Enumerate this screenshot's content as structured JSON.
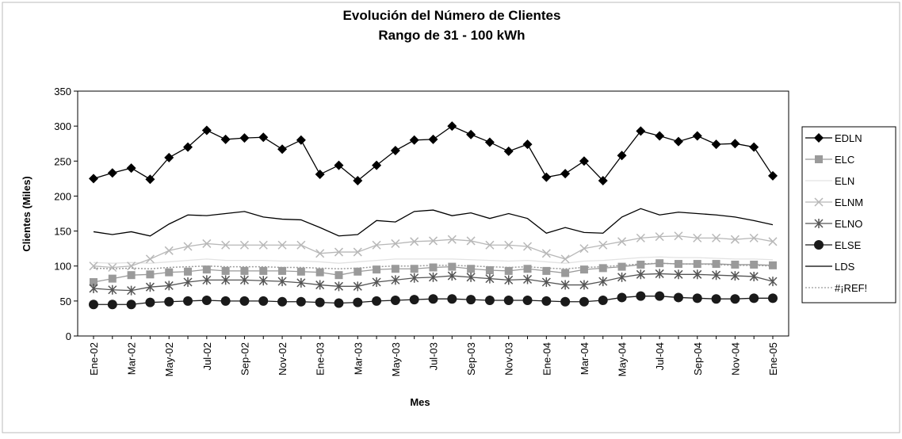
{
  "chart_data": {
    "type": "line",
    "title": "Evolución del Número de Clientes",
    "subtitle": "Rango de 31 - 100 kWh",
    "x_label": "Mes",
    "y_label": "Clientes (Miles)",
    "categories": [
      "Ene-02",
      null,
      "Mar-02",
      null,
      "May-02",
      null,
      "Jul-02",
      null,
      "Sep-02",
      null,
      "Nov-02",
      null,
      "Ene-03",
      null,
      "Mar-03",
      null,
      "May-03",
      null,
      "Jul-03",
      null,
      "Sep-03",
      null,
      "Nov-03",
      null,
      "Ene-04",
      null,
      "Mar-04",
      null,
      "May-04",
      null,
      "Jul-04",
      null,
      "Sep-04",
      null,
      "Nov-04",
      null,
      "Ene-05"
    ],
    "ylim": [
      0,
      350
    ],
    "yticks": [
      0,
      50,
      100,
      150,
      200,
      250,
      300,
      350
    ],
    "legend": "right",
    "series": [
      {
        "name": "EDLN",
        "color": "#000000",
        "marker": "diamond",
        "values": [
          225,
          233,
          240,
          224,
          255,
          270,
          294,
          281,
          283,
          284,
          267,
          280,
          231,
          244,
          222,
          244,
          265,
          280,
          281,
          300,
          288,
          277,
          264,
          274,
          227,
          232,
          250,
          222,
          258,
          293,
          286,
          278,
          286,
          274,
          275,
          270,
          229
        ]
      },
      {
        "name": "ELC",
        "color": "#9a9a9a",
        "marker": "square",
        "values": [
          77,
          82,
          87,
          88,
          91,
          92,
          95,
          93,
          93,
          93,
          93,
          92,
          91,
          87,
          92,
          95,
          96,
          96,
          98,
          99,
          96,
          94,
          93,
          96,
          93,
          90,
          95,
          97,
          99,
          102,
          104,
          103,
          103,
          103,
          102,
          102,
          101
        ]
      },
      {
        "name": "ELN",
        "color": "#e2e2e2",
        "marker": "none",
        "values": [
          105,
          104,
          105,
          104,
          106,
          108,
          110,
          108,
          108,
          108,
          107,
          107,
          106,
          104,
          106,
          108,
          110,
          110,
          110,
          110,
          109,
          108,
          107,
          108,
          106,
          104,
          107,
          108,
          110,
          112,
          113,
          112,
          112,
          111,
          110,
          110,
          109
        ]
      },
      {
        "name": "ELNM",
        "color": "#b8b8b8",
        "marker": "x",
        "values": [
          100,
          98,
          100,
          110,
          122,
          128,
          132,
          130,
          130,
          130,
          130,
          130,
          118,
          120,
          120,
          130,
          132,
          135,
          136,
          138,
          136,
          130,
          130,
          128,
          118,
          110,
          125,
          130,
          135,
          140,
          142,
          143,
          140,
          140,
          138,
          140,
          135
        ]
      },
      {
        "name": "ELNO",
        "color": "#555555",
        "marker": "star",
        "values": [
          68,
          66,
          65,
          70,
          72,
          77,
          80,
          80,
          80,
          79,
          78,
          76,
          73,
          71,
          71,
          77,
          80,
          83,
          84,
          86,
          84,
          82,
          80,
          81,
          77,
          73,
          73,
          78,
          84,
          88,
          89,
          88,
          88,
          87,
          86,
          85,
          78
        ]
      },
      {
        "name": "ELSE",
        "color": "#1a1a1a",
        "marker": "circle",
        "values": [
          45,
          45,
          45,
          48,
          49,
          50,
          51,
          50,
          50,
          50,
          49,
          49,
          48,
          47,
          48,
          50,
          51,
          52,
          53,
          53,
          52,
          51,
          51,
          51,
          50,
          49,
          49,
          51,
          55,
          57,
          57,
          55,
          54,
          53,
          53,
          54,
          54
        ]
      },
      {
        "name": "LDS",
        "color": "#000000",
        "marker": "none",
        "values": [
          149,
          145,
          149,
          143,
          160,
          173,
          172,
          175,
          178,
          170,
          167,
          166,
          155,
          143,
          145,
          165,
          163,
          178,
          180,
          172,
          176,
          168,
          175,
          168,
          147,
          155,
          148,
          147,
          170,
          182,
          173,
          177,
          175,
          173,
          170,
          165,
          159
        ]
      },
      {
        "name": "#¡REF!",
        "color": "#9a9a9a",
        "marker": "dotted",
        "values": [
          97,
          96,
          97,
          96,
          98,
          99,
          100,
          99,
          99,
          99,
          98,
          98,
          97,
          96,
          97,
          99,
          100,
          100,
          101,
          101,
          100,
          99,
          98,
          99,
          97,
          96,
          98,
          99,
          101,
          103,
          104,
          103,
          103,
          102,
          101,
          101,
          100
        ]
      }
    ]
  }
}
